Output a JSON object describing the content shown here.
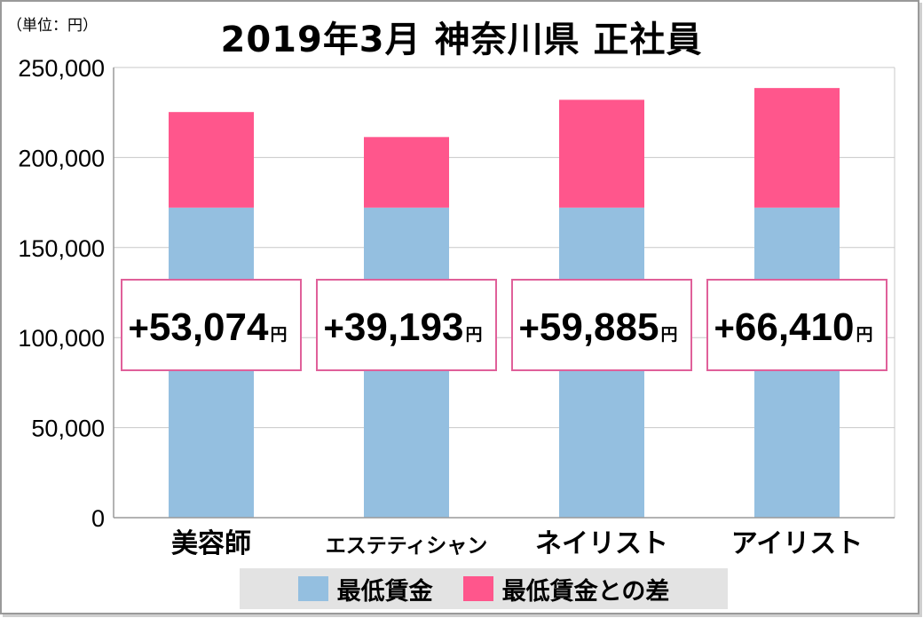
{
  "unit_label": "（単位：円）",
  "chart_data": {
    "type": "bar",
    "stacked": true,
    "title": "2019年3月 神奈川県 正社員",
    "categories": [
      "美容師",
      "エステティシャン",
      "ネイリスト",
      "アイリスト"
    ],
    "series": [
      {
        "name": "最低賃金",
        "color": "#94bfe0",
        "values": [
          172180,
          172180,
          172180,
          172180
        ]
      },
      {
        "name": "最低賃金との差",
        "color": "#ff568c",
        "values": [
          53074,
          39193,
          59885,
          66410
        ]
      }
    ],
    "y_ticks": [
      "0",
      "50,000",
      "100,000",
      "150,000",
      "200,000",
      "250,000"
    ],
    "ylim": [
      0,
      250000
    ],
    "grid": true,
    "legend": "bottom",
    "annotations": [
      {
        "prefix": "+",
        "value": "53,074",
        "suffix": "円"
      },
      {
        "prefix": "+",
        "value": "39,193",
        "suffix": "円"
      },
      {
        "prefix": "+",
        "value": "59,885",
        "suffix": "円"
      },
      {
        "prefix": "+",
        "value": "66,410",
        "suffix": "円"
      }
    ]
  },
  "legend": {
    "items": [
      {
        "label": "最低賃金",
        "color": "#94bfe0"
      },
      {
        "label": "最低賃金との差",
        "color": "#ff568c"
      }
    ]
  }
}
